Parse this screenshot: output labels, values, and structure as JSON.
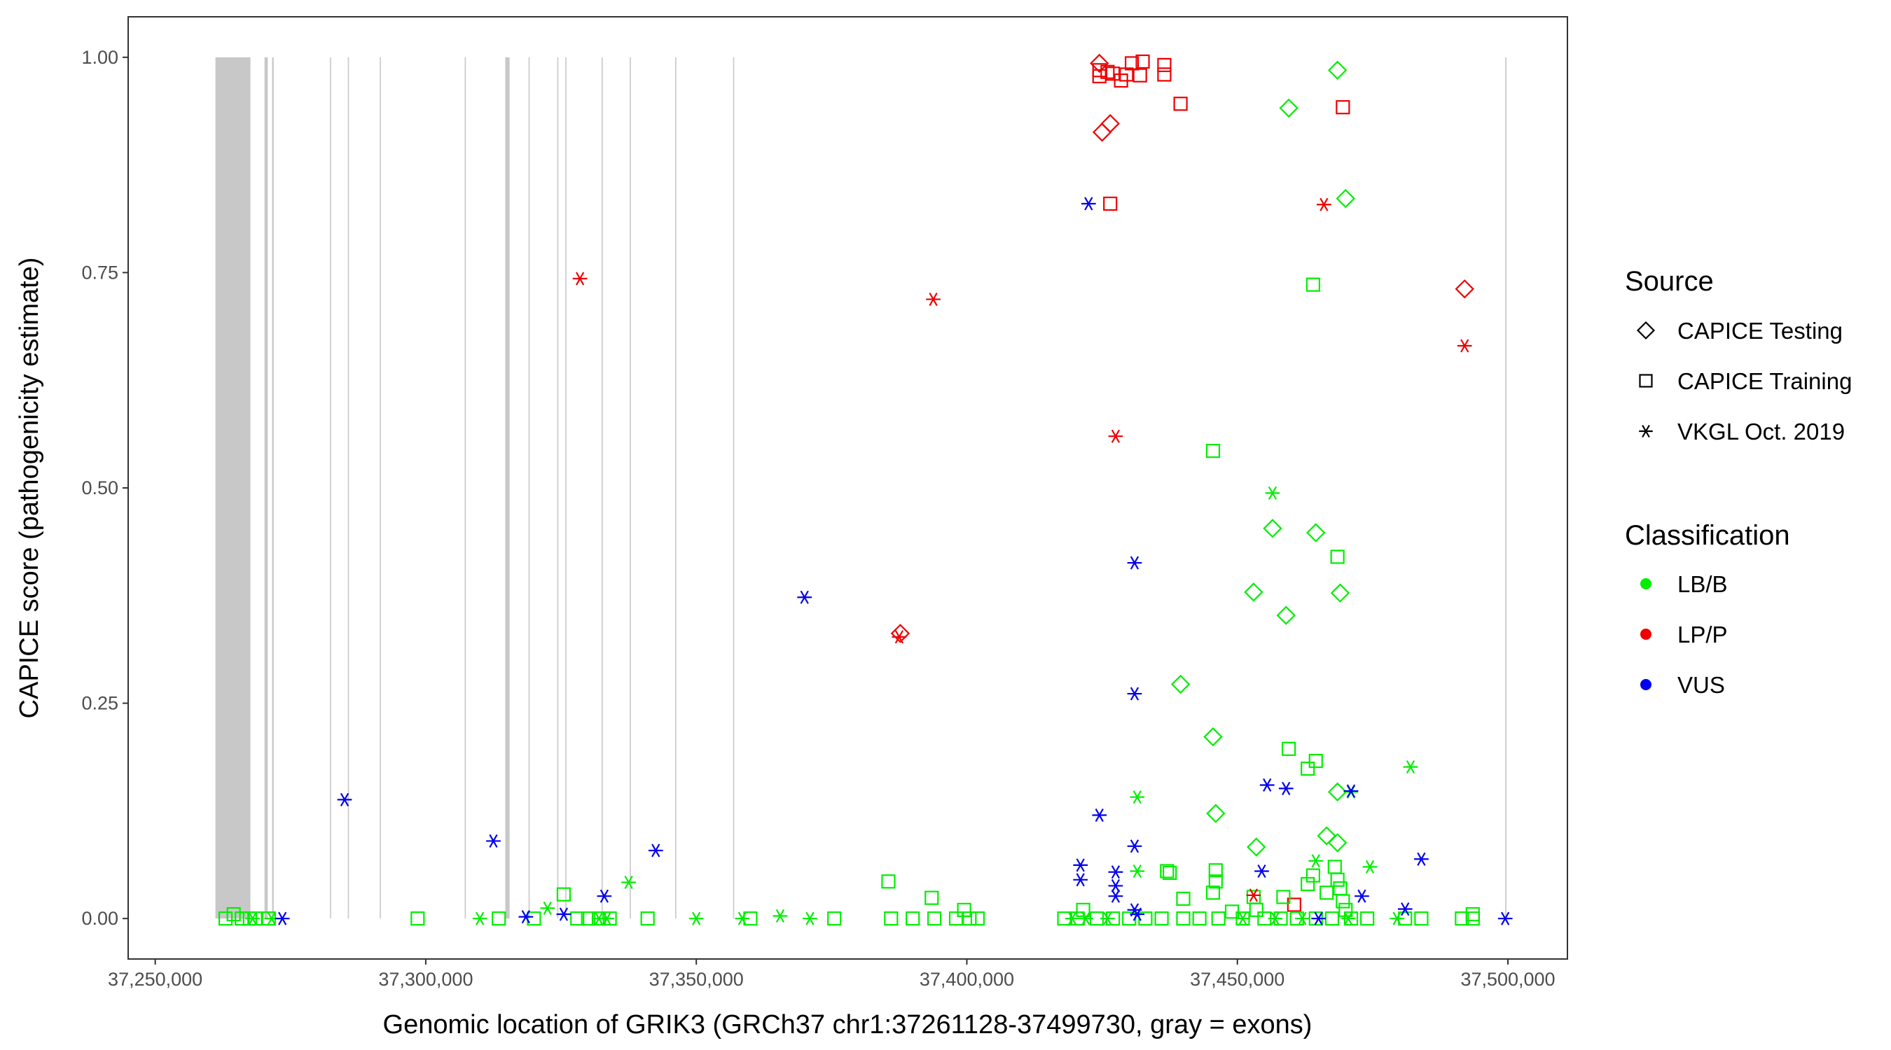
{
  "colors": {
    "LB/B": "#00EE00",
    "LP/P": "#EE0000",
    "VUS": "#0000EE",
    "exon": "#c8c8c8"
  },
  "chart_data": {
    "type": "scatter",
    "title": "",
    "xlabel": "Genomic location of GRIK3 (GRCh37 chr1:37261128-37499730, gray = exons)",
    "ylabel": "CAPICE score (pathogenicity estimate)",
    "xlim": [
      37245000,
      37511000
    ],
    "ylim": [
      -0.047,
      1.047
    ],
    "x_ticks": [
      37250000,
      37300000,
      37350000,
      37400000,
      37450000,
      37500000
    ],
    "x_tick_labels": [
      "37,250,000",
      "37,300,000",
      "37,350,000",
      "37,400,000",
      "37,450,000",
      "37,500,000"
    ],
    "y_ticks": [
      0,
      0.25,
      0.5,
      0.75,
      1.0
    ],
    "y_tick_labels": [
      "0.00",
      "0.25",
      "0.50",
      "0.75",
      "1.00"
    ],
    "grid": false,
    "exons": [
      [
        37261128,
        37267600
      ],
      [
        37270200,
        37270800
      ],
      [
        37271600,
        37271900
      ],
      [
        37282300,
        37282500
      ],
      [
        37285600,
        37285800
      ],
      [
        37291500,
        37291700
      ],
      [
        37307200,
        37307400
      ],
      [
        37314700,
        37315500
      ],
      [
        37319000,
        37319200
      ],
      [
        37324300,
        37324500
      ],
      [
        37325800,
        37326000
      ],
      [
        37332500,
        37332700
      ],
      [
        37337700,
        37337900
      ],
      [
        37346100,
        37346300
      ],
      [
        37356800,
        37357000
      ],
      [
        37499500,
        37499730
      ]
    ],
    "legend": {
      "position": "right",
      "source_title": "Source",
      "source_entries": [
        {
          "label": "CAPICE Testing",
          "shape": "diamond"
        },
        {
          "label": "CAPICE Training",
          "shape": "square"
        },
        {
          "label": "VKGL Oct. 2019",
          "shape": "asterisk"
        }
      ],
      "class_title": "Classification",
      "class_entries": [
        {
          "label": "LB/B",
          "color": "#00EE00"
        },
        {
          "label": "LP/P",
          "color": "#EE0000"
        },
        {
          "label": "VUS",
          "color": "#0000EE"
        }
      ]
    },
    "series": [
      {
        "source": "CAPICE Testing",
        "classification": "LP/P",
        "points": [
          [
            37424500,
            0.993
          ],
          [
            37426500,
            0.923
          ],
          [
            37425000,
            0.913
          ],
          [
            37387700,
            0.331
          ],
          [
            37492000,
            0.731
          ]
        ]
      },
      {
        "source": "CAPICE Testing",
        "classification": "LB/B",
        "points": [
          [
            37468500,
            0.985
          ],
          [
            37459500,
            0.941
          ],
          [
            37470000,
            0.836
          ],
          [
            37456500,
            0.453
          ],
          [
            37464500,
            0.448
          ],
          [
            37453000,
            0.379
          ],
          [
            37469000,
            0.378
          ],
          [
            37459000,
            0.352
          ],
          [
            37439500,
            0.272
          ],
          [
            37445500,
            0.211
          ],
          [
            37468500,
            0.147
          ],
          [
            37446000,
            0.122
          ],
          [
            37466500,
            0.096
          ],
          [
            37453500,
            0.083
          ],
          [
            37468500,
            0.088
          ]
        ]
      },
      {
        "source": "CAPICE Training",
        "classification": "LP/P",
        "points": [
          [
            37424500,
            0.985
          ],
          [
            37424500,
            0.978
          ],
          [
            37426000,
            0.983
          ],
          [
            37427000,
            0.981
          ],
          [
            37428500,
            0.973
          ],
          [
            37429500,
            0.98
          ],
          [
            37430500,
            0.993
          ],
          [
            37432500,
            0.995
          ],
          [
            37432000,
            0.979
          ],
          [
            37436500,
            0.991
          ],
          [
            37436500,
            0.98
          ],
          [
            37439500,
            0.946
          ],
          [
            37469500,
            0.942
          ],
          [
            37426500,
            0.83
          ],
          [
            37460500,
            0.016
          ]
        ]
      },
      {
        "source": "CAPICE Training",
        "classification": "LB/B",
        "points": [
          [
            37464000,
            0.736
          ],
          [
            37445500,
            0.543
          ],
          [
            37468500,
            0.42
          ],
          [
            37459500,
            0.197
          ],
          [
            37464500,
            0.183
          ],
          [
            37463000,
            0.174
          ],
          [
            37385500,
            0.043
          ],
          [
            37393500,
            0.024
          ],
          [
            37325500,
            0.028
          ],
          [
            37399500,
            0.01
          ],
          [
            37437500,
            0.053
          ],
          [
            37437000,
            0.055
          ],
          [
            37446000,
            0.056
          ],
          [
            37446000,
            0.043
          ],
          [
            37445500,
            0.03
          ],
          [
            37440000,
            0.023
          ],
          [
            37453000,
            0.025
          ],
          [
            37453500,
            0.01
          ],
          [
            37458500,
            0.025
          ],
          [
            37463000,
            0.04
          ],
          [
            37464000,
            0.05
          ],
          [
            37466500,
            0.03
          ],
          [
            37468000,
            0.06
          ],
          [
            37468500,
            0.045
          ],
          [
            37469000,
            0.035
          ],
          [
            37469500,
            0.02
          ],
          [
            37470000,
            0.01
          ],
          [
            37421500,
            0.01
          ],
          [
            37449000,
            0.008
          ],
          [
            37264500,
            0.005
          ],
          [
            37493500,
            0.005
          ],
          [
            37263000,
            0.0
          ],
          [
            37266000,
            0.0
          ],
          [
            37267500,
            0.0
          ],
          [
            37268500,
            0.0
          ],
          [
            37271000,
            0.0
          ],
          [
            37298500,
            0.0
          ],
          [
            37313500,
            0.0
          ],
          [
            37320000,
            0.0
          ],
          [
            37328000,
            0.0
          ],
          [
            37330000,
            0.0
          ],
          [
            37332000,
            0.0
          ],
          [
            37334000,
            0.0
          ],
          [
            37341000,
            0.0
          ],
          [
            37360000,
            0.0
          ],
          [
            37375500,
            0.0
          ],
          [
            37386000,
            0.0
          ],
          [
            37390000,
            0.0
          ],
          [
            37394000,
            0.0
          ],
          [
            37398000,
            0.0
          ],
          [
            37400500,
            0.0
          ],
          [
            37402000,
            0.0
          ],
          [
            37418000,
            0.0
          ],
          [
            37420500,
            0.0
          ],
          [
            37424000,
            0.0
          ],
          [
            37427000,
            0.0
          ],
          [
            37430000,
            0.0
          ],
          [
            37433000,
            0.0
          ],
          [
            37436000,
            0.0
          ],
          [
            37440000,
            0.0
          ],
          [
            37443000,
            0.0
          ],
          [
            37446500,
            0.0
          ],
          [
            37451000,
            0.0
          ],
          [
            37455000,
            0.0
          ],
          [
            37458000,
            0.0
          ],
          [
            37461000,
            0.0
          ],
          [
            37464500,
            0.0
          ],
          [
            37467500,
            0.0
          ],
          [
            37471000,
            0.0
          ],
          [
            37474000,
            0.0
          ],
          [
            37481000,
            0.0
          ],
          [
            37484000,
            0.0
          ],
          [
            37491500,
            0.0
          ],
          [
            37493500,
            0.0
          ]
        ]
      },
      {
        "source": "VKGL Oct. 2019",
        "classification": "LP/P",
        "points": [
          [
            37328500,
            0.743
          ],
          [
            37393800,
            0.719
          ],
          [
            37427500,
            0.56
          ],
          [
            37387500,
            0.327
          ],
          [
            37466000,
            0.829
          ],
          [
            37492000,
            0.665
          ],
          [
            37453000,
            0.027
          ]
        ]
      },
      {
        "source": "VKGL Oct. 2019",
        "classification": "LB/B",
        "points": [
          [
            37456500,
            0.494
          ],
          [
            37482000,
            0.176
          ],
          [
            37431500,
            0.141
          ],
          [
            37471000,
            0.147
          ],
          [
            37464500,
            0.067
          ],
          [
            37474500,
            0.06
          ],
          [
            37431500,
            0.055
          ],
          [
            37337500,
            0.042
          ],
          [
            37322500,
            0.012
          ],
          [
            37310000,
            0.0
          ],
          [
            37332000,
            0.0
          ],
          [
            37333500,
            0.0
          ],
          [
            37350000,
            0.0
          ],
          [
            37358500,
            0.0
          ],
          [
            37365500,
            0.003
          ],
          [
            37371000,
            0.0
          ],
          [
            37419500,
            0.0
          ],
          [
            37422000,
            0.0
          ],
          [
            37426000,
            0.0
          ],
          [
            37451000,
            0.0
          ],
          [
            37457000,
            0.0
          ],
          [
            37462000,
            0.0
          ],
          [
            37470500,
            0.0
          ],
          [
            37479500,
            0.0
          ],
          [
            37268000,
            0.0
          ],
          [
            37271500,
            0.0
          ]
        ]
      },
      {
        "source": "VKGL Oct. 2019",
        "classification": "VUS",
        "points": [
          [
            37422500,
            0.83
          ],
          [
            37431000,
            0.413
          ],
          [
            37370000,
            0.373
          ],
          [
            37431000,
            0.261
          ],
          [
            37285000,
            0.138
          ],
          [
            37312500,
            0.09
          ],
          [
            37342500,
            0.079
          ],
          [
            37424500,
            0.12
          ],
          [
            37455500,
            0.155
          ],
          [
            37459000,
            0.151
          ],
          [
            37471000,
            0.148
          ],
          [
            37431000,
            0.084
          ],
          [
            37484000,
            0.069
          ],
          [
            37421000,
            0.062
          ],
          [
            37421000,
            0.045
          ],
          [
            37427500,
            0.054
          ],
          [
            37427500,
            0.038
          ],
          [
            37427500,
            0.026
          ],
          [
            37454500,
            0.055
          ],
          [
            37473000,
            0.026
          ],
          [
            37333000,
            0.026
          ],
          [
            37318500,
            0.002
          ],
          [
            37325500,
            0.005
          ],
          [
            37431000,
            0.01
          ],
          [
            37481000,
            0.011
          ],
          [
            37273500,
            0.0
          ],
          [
            37499500,
            0.0
          ],
          [
            37465000,
            0.0
          ],
          [
            37431500,
            0.005
          ]
        ]
      }
    ]
  }
}
